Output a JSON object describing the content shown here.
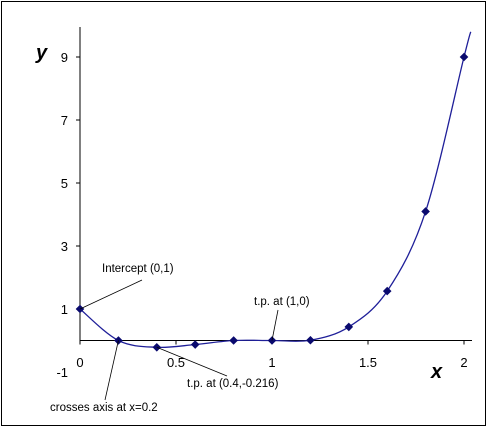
{
  "chart_data": {
    "type": "line",
    "title": "",
    "xlabel": "x",
    "ylabel": "y",
    "xlim": [
      0,
      2
    ],
    "ylim": [
      -1,
      10
    ],
    "x_ticks": [
      0,
      0.5,
      1,
      1.5,
      2
    ],
    "x_tick_labels": [
      "0",
      "0.5",
      "1",
      "1.5",
      "2"
    ],
    "y_ticks": [
      -1,
      1,
      3,
      5,
      7,
      9
    ],
    "y_tick_labels": [
      "-1",
      "1",
      "3",
      "5",
      "7",
      "9"
    ],
    "grid": false,
    "legend": "none",
    "line_color": "#1f1f99",
    "marker_color": "#0a0a6e",
    "series": [
      {
        "x": [
          0,
          0.2,
          0.4,
          0.6,
          0.8,
          1.0,
          1.2,
          1.4,
          1.6,
          1.8,
          2.0
        ],
        "y": [
          1.0,
          0.0,
          -0.216,
          -0.128,
          0.0,
          0.0,
          0.008,
          0.432,
          1.568,
          4.096,
          9.0
        ]
      }
    ],
    "annotations": [
      {
        "text": "Intercept (0,1)",
        "x": 0,
        "y": 1
      },
      {
        "text": "crosses axis at x=0.2",
        "x": 0.2,
        "y": 0
      },
      {
        "text": "t.p. at (0.4,-0.216)",
        "x": 0.4,
        "y": -0.216
      },
      {
        "text": "t.p. at (1,0)",
        "x": 1,
        "y": 0
      }
    ]
  }
}
